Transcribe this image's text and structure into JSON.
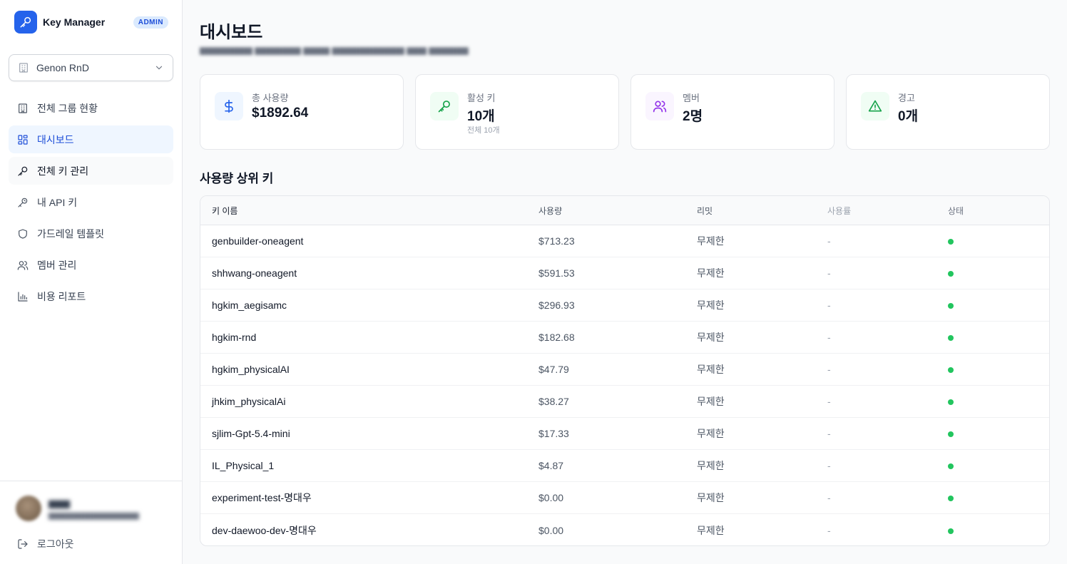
{
  "app": {
    "name": "Key Manager",
    "role_badge": "ADMIN"
  },
  "org": {
    "selected": "Genon RnD"
  },
  "nav": [
    {
      "label": "전체 그룹 현황",
      "icon": "building-icon"
    },
    {
      "label": "대시보드",
      "icon": "dashboard-icon"
    },
    {
      "label": "전체 키 관리",
      "icon": "key-icon"
    },
    {
      "label": "내 API 키",
      "icon": "key-outline-icon"
    },
    {
      "label": "가드레일 템플릿",
      "icon": "shield-icon"
    },
    {
      "label": "멤버 관리",
      "icon": "users-icon"
    },
    {
      "label": "비용 리포트",
      "icon": "bar-chart-icon"
    }
  ],
  "user": {
    "logout_label": "로그아웃"
  },
  "page": {
    "title": "대시보드"
  },
  "cards": [
    {
      "label": "총 사용량",
      "value": "$1892.64",
      "sub": "",
      "icon": "dollar-icon",
      "color": "#2563eb",
      "bg": "#eff6ff"
    },
    {
      "label": "활성 키",
      "value": "10개",
      "sub": "전체 10개",
      "icon": "key-icon",
      "color": "#16a34a",
      "bg": "#f0fdf4"
    },
    {
      "label": "멤버",
      "value": "2명",
      "sub": "",
      "icon": "users-icon",
      "color": "#9333ea",
      "bg": "#faf5ff"
    },
    {
      "label": "경고",
      "value": "0개",
      "sub": "",
      "icon": "warning-icon",
      "color": "#16a34a",
      "bg": "#f0fdf4"
    }
  ],
  "top_keys": {
    "title": "사용량 상위 키",
    "columns": [
      "키 이름",
      "사용량",
      "리밋",
      "사용률",
      "상태"
    ],
    "rows": [
      {
        "name": "genbuilder-oneagent",
        "usage": "$713.23",
        "limit": "무제한",
        "rate": "-",
        "status": "active"
      },
      {
        "name": "shhwang-oneagent",
        "usage": "$591.53",
        "limit": "무제한",
        "rate": "-",
        "status": "active"
      },
      {
        "name": "hgkim_aegisamc",
        "usage": "$296.93",
        "limit": "무제한",
        "rate": "-",
        "status": "active"
      },
      {
        "name": "hgkim-rnd",
        "usage": "$182.68",
        "limit": "무제한",
        "rate": "-",
        "status": "active"
      },
      {
        "name": "hgkim_physicalAI",
        "usage": "$47.79",
        "limit": "무제한",
        "rate": "-",
        "status": "active"
      },
      {
        "name": "jhkim_physicalAi",
        "usage": "$38.27",
        "limit": "무제한",
        "rate": "-",
        "status": "active"
      },
      {
        "name": "sjlim-Gpt-5.4-mini",
        "usage": "$17.33",
        "limit": "무제한",
        "rate": "-",
        "status": "active"
      },
      {
        "name": "IL_Physical_1",
        "usage": "$4.87",
        "limit": "무제한",
        "rate": "-",
        "status": "active"
      },
      {
        "name": "experiment-test-명대우",
        "usage": "$0.00",
        "limit": "무제한",
        "rate": "-",
        "status": "active"
      },
      {
        "name": "dev-daewoo-dev-명대우",
        "usage": "$0.00",
        "limit": "무제한",
        "rate": "-",
        "status": "active"
      }
    ]
  },
  "colors": {
    "accent": "#2563eb",
    "status_active": "#22c55e"
  }
}
